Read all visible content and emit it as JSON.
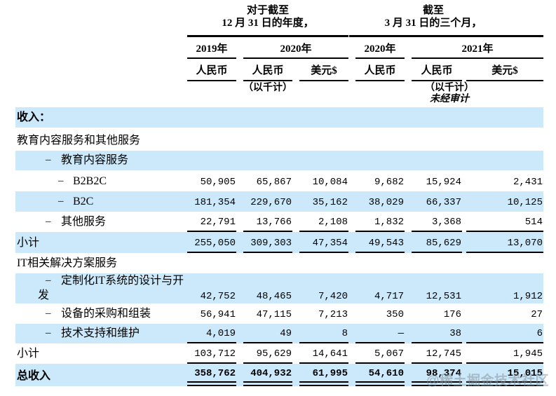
{
  "colors": {
    "row_highlight": "#cbe9fb",
    "rule": "#000000",
    "watermark": "#8a949e"
  },
  "header": {
    "groups": [
      {
        "title": "对于截至\n12 月 31 日的年度，",
        "years": [
          {
            "label": "2019年"
          },
          {
            "label": "2020年"
          }
        ]
      },
      {
        "title": "截至\n3 月 31 日的三个月，",
        "years": [
          {
            "label": "2020年"
          },
          {
            "label": "2021年"
          }
        ]
      }
    ],
    "currencies": [
      "人民币",
      "人民币",
      "美元$",
      "人民币",
      "人民币",
      "美元$"
    ],
    "thousands_note": "（以千计）",
    "unaudited_note": "未经审计"
  },
  "rows": [
    {
      "label": "收入：",
      "indent": 0,
      "bold": true,
      "highlight": true,
      "rule": "none",
      "values": [
        "",
        "",
        "",
        "",
        "",
        ""
      ]
    },
    {
      "label": "教育内容服务和其他服务",
      "indent": 0,
      "bold": false,
      "highlight": false,
      "rule": "none",
      "values": [
        "",
        "",
        "",
        "",
        "",
        ""
      ]
    },
    {
      "label": "教育内容服务",
      "indent": 1,
      "bold": false,
      "highlight": true,
      "rule": "none",
      "values": [
        "",
        "",
        "",
        "",
        "",
        ""
      ]
    },
    {
      "label": "B2B2C",
      "indent": 2,
      "bold": false,
      "highlight": false,
      "rule": "none",
      "values": [
        "50,905",
        "65,867",
        "10,084",
        "9,682",
        "15,924",
        "2,431"
      ]
    },
    {
      "label": "B2C",
      "indent": 2,
      "bold": false,
      "highlight": true,
      "rule": "none",
      "values": [
        "181,354",
        "229,670",
        "35,162",
        "38,029",
        "66,337",
        "10,125"
      ]
    },
    {
      "label": "其他服务",
      "indent": 1,
      "bold": false,
      "highlight": false,
      "rule": "single",
      "values": [
        "22,791",
        "13,766",
        "2,108",
        "1,832",
        "3,368",
        "514"
      ]
    },
    {
      "label": "小计",
      "indent": 0,
      "bold": false,
      "highlight": true,
      "rule": "single",
      "values": [
        "255,050",
        "309,303",
        "47,354",
        "49,543",
        "85,629",
        "13,070"
      ]
    },
    {
      "label": "IT相关解决方案服务",
      "indent": 0,
      "bold": false,
      "highlight": false,
      "rule": "none",
      "values": [
        "",
        "",
        "",
        "",
        "",
        ""
      ]
    },
    {
      "label": "定制化IT系统的设计与开\n发",
      "indent": 1,
      "bold": false,
      "highlight": true,
      "rule": "none",
      "tall": true,
      "values": [
        "42,752",
        "48,465",
        "7,420",
        "4,717",
        "12,531",
        "1,912"
      ]
    },
    {
      "label": "设备的采购和组装",
      "indent": 1,
      "bold": false,
      "highlight": false,
      "rule": "none",
      "values": [
        "56,941",
        "47,115",
        "7,213",
        "350",
        "176",
        "27"
      ]
    },
    {
      "label": "技术支持和维护",
      "indent": 1,
      "bold": false,
      "highlight": true,
      "rule": "single",
      "values": [
        "4,019",
        "49",
        "8",
        "—",
        "38",
        "6"
      ]
    },
    {
      "label": "小计",
      "indent": 0,
      "bold": false,
      "highlight": false,
      "rule": "single",
      "values": [
        "103,712",
        "95,629",
        "14,641",
        "5,067",
        "12,745",
        "1,945"
      ]
    },
    {
      "label": "总收入",
      "indent": 0,
      "bold": true,
      "highlight": true,
      "rule": "double",
      "values": [
        "358,762",
        "404,932",
        "61,995",
        "54,610",
        "98,374",
        "15,015"
      ]
    }
  ],
  "watermark": "@稀土掘金技术社区"
}
